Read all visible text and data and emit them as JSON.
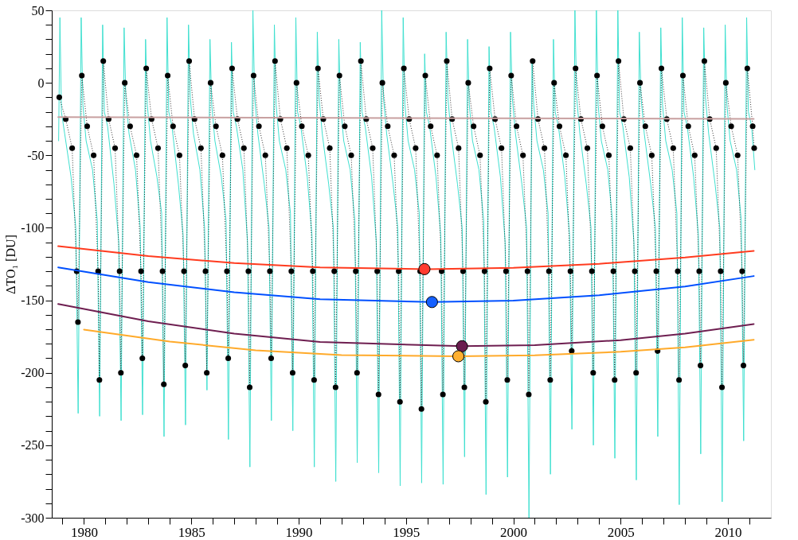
{
  "chart_data": {
    "type": "line",
    "ylabel": "ΔTO₁  [DU]",
    "xlim": [
      1978.5,
      2012
    ],
    "ylim": [
      -300,
      50
    ],
    "xticks": [
      {
        "value": 1979,
        "label": null
      },
      1980,
      {
        "value": 1981,
        "label": null
      },
      {
        "value": 1982,
        "label": null
      },
      {
        "value": 1983,
        "label": null
      },
      {
        "value": 1984,
        "label": null
      },
      1985,
      {
        "value": 1986,
        "label": null
      },
      {
        "value": 1987,
        "label": null
      },
      {
        "value": 1988,
        "label": null
      },
      {
        "value": 1989,
        "label": null
      },
      1990,
      {
        "value": 1991,
        "label": null
      },
      {
        "value": 1992,
        "label": null
      },
      {
        "value": 1993,
        "label": null
      },
      {
        "value": 1994,
        "label": null
      },
      1995,
      {
        "value": 1996,
        "label": null
      },
      {
        "value": 1997,
        "label": null
      },
      {
        "value": 1998,
        "label": null
      },
      {
        "value": 1999,
        "label": null
      },
      2000,
      {
        "value": 2001,
        "label": null
      },
      {
        "value": 2002,
        "label": null
      },
      {
        "value": 2003,
        "label": null
      },
      {
        "value": 2004,
        "label": null
      },
      2005,
      {
        "value": 2006,
        "label": null
      },
      {
        "value": 2007,
        "label": null
      },
      {
        "value": 2008,
        "label": null
      },
      {
        "value": 2009,
        "label": null
      },
      2010,
      {
        "value": 2011,
        "label": null
      }
    ],
    "yticks": [
      -300,
      {
        "value": -290,
        "label": null
      },
      {
        "value": -280,
        "label": null
      },
      {
        "value": -270,
        "label": null
      },
      {
        "value": -260,
        "label": null
      },
      -250,
      {
        "value": -240,
        "label": null
      },
      {
        "value": -230,
        "label": null
      },
      {
        "value": -220,
        "label": null
      },
      {
        "value": -210,
        "label": null
      },
      -200,
      {
        "value": -190,
        "label": null
      },
      {
        "value": -180,
        "label": null
      },
      {
        "value": -170,
        "label": null
      },
      {
        "value": -160,
        "label": null
      },
      -150,
      {
        "value": -140,
        "label": null
      },
      {
        "value": -130,
        "label": null
      },
      {
        "value": -120,
        "label": null
      },
      {
        "value": -110,
        "label": null
      },
      -100,
      {
        "value": -90,
        "label": null
      },
      {
        "value": -80,
        "label": null
      },
      {
        "value": -70,
        "label": null
      },
      {
        "value": -60,
        "label": null
      },
      -50,
      {
        "value": -40,
        "label": null
      },
      {
        "value": -30,
        "label": null
      },
      {
        "value": -20,
        "label": null
      },
      {
        "value": -10,
        "label": null
      },
      0,
      {
        "value": 10,
        "label": null
      },
      {
        "value": 20,
        "label": null
      },
      {
        "value": 30,
        "label": null
      },
      {
        "value": 40,
        "label": null
      },
      50
    ],
    "grid": false,
    "series": [
      {
        "color": "#40e0d0",
        "x": [
          1978.82,
          1978.88,
          1978.95,
          1979.1,
          1979.4,
          1979.62,
          1979.73,
          1979.87,
          1979.95,
          1980.1,
          1980.4,
          1980.62,
          1980.73,
          1980.87,
          1980.95,
          1981.1,
          1981.4,
          1981.62,
          1981.73,
          1981.87,
          1981.95,
          1982.1,
          1982.4,
          1982.62,
          1982.73,
          1982.87,
          1982.95,
          1983.1,
          1983.4,
          1983.62,
          1983.73,
          1983.87,
          1983.95,
          1984.1,
          1984.4,
          1984.62,
          1984.73,
          1984.87,
          1984.95,
          1985.1,
          1985.4,
          1985.62,
          1985.73,
          1985.87,
          1985.95,
          1986.1,
          1986.4,
          1986.62,
          1986.73,
          1986.87,
          1986.95,
          1987.1,
          1987.4,
          1987.62,
          1987.73,
          1987.87,
          1987.95,
          1988.1,
          1988.4,
          1988.62,
          1988.73,
          1988.87,
          1988.95,
          1989.1,
          1989.4,
          1989.62,
          1989.73,
          1989.87,
          1989.95,
          1990.1,
          1990.4,
          1990.62,
          1990.73,
          1990.87,
          1990.95,
          1991.1,
          1991.4,
          1991.62,
          1991.73,
          1991.87,
          1991.95,
          1992.1,
          1992.4,
          1992.62,
          1992.73,
          1992.87,
          1992.95,
          1993.1,
          1993.4,
          1993.62,
          1993.73,
          1993.87,
          1993.95,
          1994.1,
          1994.4,
          1994.62,
          1994.73,
          1994.87,
          1994.95,
          1995.1,
          1995.4,
          1995.62,
          1995.73,
          1995.87,
          1995.95,
          1996.1,
          1996.4,
          1996.62,
          1996.73,
          1996.87,
          1996.95,
          1997.1,
          1997.4,
          1997.62,
          1997.73,
          1997.87,
          1997.95,
          1998.1,
          1998.4,
          1998.62,
          1998.73,
          1998.87,
          1998.95,
          1999.1,
          1999.4,
          1999.62,
          1999.73,
          1999.87,
          1999.95,
          2000.1,
          2000.4,
          2000.62,
          2000.73,
          2000.87,
          2000.95,
          2001.1,
          2001.4,
          2001.62,
          2001.73,
          2001.87,
          2001.95,
          2002.1,
          2002.4,
          2002.62,
          2002.73,
          2002.87,
          2002.95,
          2003.1,
          2003.4,
          2003.62,
          2003.73,
          2003.87,
          2003.95,
          2004.1,
          2004.4,
          2004.62,
          2004.73,
          2004.87,
          2004.95,
          2005.1,
          2005.4,
          2005.62,
          2005.73,
          2005.87,
          2005.95,
          2006.1,
          2006.4,
          2006.62,
          2006.73,
          2006.87,
          2006.95,
          2007.1,
          2007.4,
          2007.62,
          2007.73,
          2007.87,
          2007.95,
          2008.1,
          2008.4,
          2008.62,
          2008.73,
          2008.87,
          2008.95,
          2009.1,
          2009.4,
          2009.62,
          2009.73,
          2009.87,
          2009.95,
          2010.1,
          2010.4,
          2010.62,
          2010.73,
          2010.87,
          2010.95,
          2011.1,
          2011.25
        ],
        "values": [
          -40,
          45,
          -20,
          -35,
          -65,
          -100,
          -228,
          45,
          -15,
          -40,
          -60,
          -95,
          -230,
          40,
          -20,
          -30,
          -70,
          -110,
          -233,
          38,
          -10,
          -35,
          -60,
          -100,
          -229,
          30,
          -15,
          -40,
          -65,
          -90,
          -244,
          45,
          -20,
          -30,
          -70,
          -105,
          -236,
          40,
          -10,
          -35,
          -60,
          -100,
          -212,
          30,
          -15,
          -40,
          -65,
          -95,
          -246,
          28,
          -20,
          -30,
          -60,
          -110,
          -265,
          50,
          -10,
          -35,
          -70,
          -100,
          -233,
          40,
          -15,
          -40,
          -60,
          -90,
          -240,
          45,
          -20,
          -30,
          -65,
          -105,
          -265,
          35,
          -10,
          -35,
          -70,
          -100,
          -275,
          30,
          -15,
          -40,
          -60,
          -95,
          -262,
          28,
          -20,
          -30,
          -65,
          -110,
          -269,
          50,
          -10,
          -35,
          -70,
          -100,
          -278,
          45,
          -15,
          -40,
          -60,
          -90,
          -276,
          20,
          -20,
          -30,
          -65,
          -105,
          -277,
          35,
          -10,
          -35,
          -70,
          -100,
          -258,
          30,
          -15,
          -40,
          -60,
          -95,
          -284,
          25,
          -20,
          -30,
          -65,
          -110,
          -272,
          35,
          -10,
          -35,
          -70,
          -100,
          -300,
          15,
          -15,
          -40,
          -60,
          -90,
          -270,
          30,
          -20,
          -30,
          -65,
          -105,
          -239,
          50,
          -10,
          -35,
          -70,
          -100,
          -250,
          50,
          -15,
          -40,
          -60,
          -95,
          -259,
          50,
          -20,
          -30,
          -65,
          -110,
          -274,
          35,
          -10,
          -35,
          -70,
          -100,
          -244,
          38,
          -15,
          -40,
          -60,
          -90,
          -291,
          45,
          -20,
          -30,
          -65,
          -105,
          -256,
          38,
          -10,
          -35,
          -70,
          -100,
          -289,
          40,
          -15,
          -40,
          -60,
          -95,
          -247,
          45,
          -20,
          -30,
          -60
        ]
      },
      {
        "color": "#000000",
        "marker": "circle",
        "line_style": "dotted",
        "x": [
          1978.85,
          1979.15,
          1979.45,
          1979.66,
          1979.72,
          1979.9,
          1980.15,
          1980.45,
          1980.66,
          1980.72,
          1980.9,
          1981.15,
          1981.45,
          1981.66,
          1981.72,
          1981.9,
          1982.15,
          1982.45,
          1982.66,
          1982.72,
          1982.9,
          1983.15,
          1983.45,
          1983.66,
          1983.72,
          1983.9,
          1984.15,
          1984.45,
          1984.66,
          1984.72,
          1984.9,
          1985.15,
          1985.45,
          1985.66,
          1985.72,
          1985.9,
          1986.15,
          1986.45,
          1986.66,
          1986.72,
          1986.9,
          1987.15,
          1987.45,
          1987.66,
          1987.72,
          1987.9,
          1988.15,
          1988.45,
          1988.66,
          1988.72,
          1988.9,
          1989.15,
          1989.45,
          1989.66,
          1989.72,
          1989.9,
          1990.15,
          1990.45,
          1990.66,
          1990.72,
          1990.9,
          1991.15,
          1991.45,
          1991.66,
          1991.72,
          1991.9,
          1992.15,
          1992.45,
          1992.66,
          1992.72,
          1992.9,
          1993.15,
          1993.45,
          1993.66,
          1993.72,
          1993.9,
          1994.15,
          1994.45,
          1994.66,
          1994.72,
          1994.9,
          1995.15,
          1995.45,
          1995.66,
          1995.72,
          1995.9,
          1996.15,
          1996.45,
          1996.66,
          1996.72,
          1996.9,
          1997.15,
          1997.45,
          1997.66,
          1997.72,
          1997.9,
          1998.15,
          1998.45,
          1998.66,
          1998.72,
          1998.9,
          1999.15,
          1999.45,
          1999.66,
          1999.72,
          1999.9,
          2000.15,
          2000.45,
          2000.66,
          2000.72,
          2000.9,
          2001.15,
          2001.45,
          2001.66,
          2001.72,
          2001.9,
          2002.15,
          2002.45,
          2002.66,
          2002.72,
          2002.9,
          2003.15,
          2003.45,
          2003.66,
          2003.72,
          2003.9,
          2004.15,
          2004.45,
          2004.66,
          2004.72,
          2004.9,
          2005.15,
          2005.45,
          2005.66,
          2005.72,
          2005.9,
          2006.15,
          2006.45,
          2006.66,
          2006.72,
          2006.9,
          2007.15,
          2007.45,
          2007.66,
          2007.72,
          2007.9,
          2008.15,
          2008.45,
          2008.66,
          2008.72,
          2008.9,
          2009.15,
          2009.45,
          2009.66,
          2009.72,
          2009.9,
          2010.15,
          2010.45,
          2010.66,
          2010.72,
          2010.9,
          2011.15,
          2011.22
        ],
        "values": [
          -10,
          -25,
          -45,
          -130,
          -165,
          5,
          -30,
          -50,
          -130,
          -205,
          15,
          -25,
          -45,
          -130,
          -200,
          0,
          -30,
          -50,
          -130,
          -190,
          10,
          -25,
          -45,
          -130,
          -208,
          5,
          -30,
          -50,
          -130,
          -195,
          15,
          -25,
          -45,
          -130,
          -200,
          0,
          -30,
          -50,
          -130,
          -190,
          10,
          -25,
          -45,
          -130,
          -210,
          5,
          -30,
          -50,
          -130,
          -190,
          15,
          -25,
          -45,
          -130,
          -200,
          0,
          -30,
          -50,
          -130,
          -205,
          10,
          -25,
          -45,
          -130,
          -210,
          5,
          -30,
          -50,
          -130,
          -200,
          15,
          -25,
          -45,
          -130,
          -215,
          0,
          -30,
          -50,
          -130,
          -220,
          10,
          -25,
          -45,
          -130,
          -225,
          5,
          -30,
          -50,
          -130,
          -215,
          15,
          -25,
          -45,
          -130,
          -210,
          0,
          -30,
          -50,
          -130,
          -220,
          10,
          -25,
          -45,
          -130,
          -205,
          5,
          -30,
          -50,
          -130,
          -215,
          15,
          -25,
          -45,
          -130,
          -205,
          0,
          -30,
          -50,
          -130,
          -185,
          10,
          -25,
          -45,
          -130,
          -200,
          5,
          -30,
          -50,
          -130,
          -205,
          15,
          -25,
          -45,
          -130,
          -200,
          0,
          -30,
          -50,
          -130,
          -185,
          10,
          -25,
          -45,
          -130,
          -205,
          5,
          -30,
          -50,
          -130,
          -195,
          15,
          -25,
          -45,
          -130,
          -210,
          0,
          -30,
          -50,
          -130,
          -195,
          10,
          -30,
          -45
        ]
      },
      {
        "color": "#c8a0a0",
        "x": [
          1978.8,
          1995,
          2011.2
        ],
        "values": [
          -23.7,
          -24.3,
          -24.9
        ]
      },
      {
        "color": "#ff3b1f",
        "x": [
          1978.8,
          1983,
          1987,
          1991,
          1996,
          2000,
          2004,
          2008,
          2011.2
        ],
        "values": [
          -112.7,
          -119.5,
          -124.3,
          -127.3,
          -128.5,
          -127.6,
          -124.8,
          -120.5,
          -115.9
        ]
      },
      {
        "color": "#0050ff",
        "x": [
          1978.8,
          1983,
          1987,
          1991,
          1996.2,
          2000,
          2004,
          2008,
          2011.2
        ],
        "values": [
          -127.3,
          -137.5,
          -144.5,
          -149.3,
          -151.2,
          -150.3,
          -146.5,
          -140.5,
          -133.3
        ]
      },
      {
        "color": "#6e1e50",
        "x": [
          1978.8,
          1983,
          1987,
          1991,
          1997.6,
          2001,
          2005,
          2008,
          2011.2
        ],
        "values": [
          -152.6,
          -164.5,
          -173,
          -178.8,
          -181.7,
          -181,
          -177.5,
          -173,
          -166.4
        ]
      },
      {
        "color": "#ffaa2a",
        "x": [
          1980,
          1984,
          1988,
          1992,
          1997.4,
          2001,
          2005,
          2008,
          2011.2
        ],
        "values": [
          -170.2,
          -178.5,
          -184.5,
          -187.8,
          -188.6,
          -188,
          -185.5,
          -182.5,
          -177.2
        ]
      },
      {
        "type": "scatter",
        "marker": "circle",
        "colors": [
          "#ff3b2f",
          "#1560ff",
          "#6a1d4f",
          "#ffb030"
        ],
        "x": [
          1995.86,
          1996.21,
          1997.61,
          1997.44
        ],
        "values": [
          -128.5,
          -151.2,
          -181.7,
          -188.6
        ]
      }
    ]
  }
}
